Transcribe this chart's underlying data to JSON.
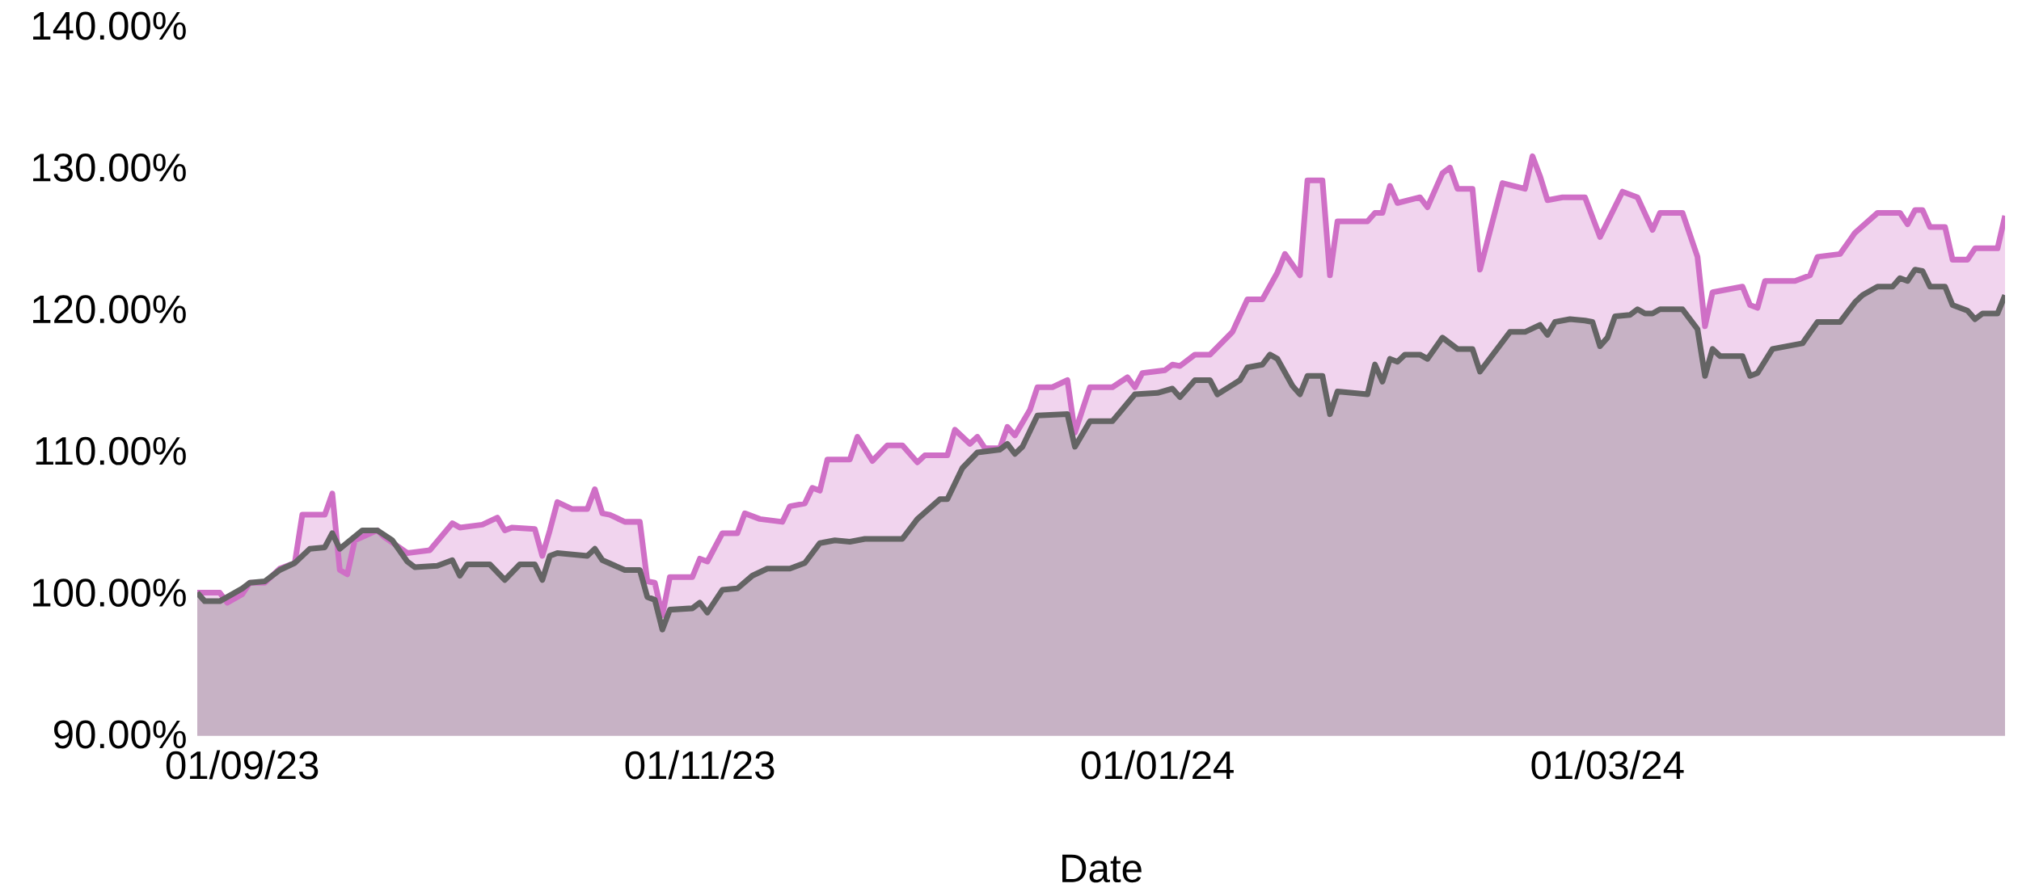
{
  "chart_data": {
    "type": "area",
    "xlabel": "Date",
    "xlim": [
      "2023-08-26",
      "2024-04-23"
    ],
    "xticks": [
      {
        "value": "2023-09-01",
        "label": "01/09/23"
      },
      {
        "value": "2023-11-01",
        "label": "01/11/23"
      },
      {
        "value": "2024-01-01",
        "label": "01/01/24"
      },
      {
        "value": "2024-03-01",
        "label": "01/03/24"
      }
    ],
    "ylim": [
      90,
      140
    ],
    "yticks": [
      {
        "value": 90,
        "label": "90.00%"
      },
      {
        "value": 100,
        "label": "100.00%"
      },
      {
        "value": 110,
        "label": "110.00%"
      },
      {
        "value": 120,
        "label": "120.00%"
      },
      {
        "value": 130,
        "label": "130.00%"
      },
      {
        "value": 140,
        "label": "140.00%"
      }
    ],
    "series": [
      {
        "color": "#cf6fc6",
        "x": [
          "2023-08-26",
          "2023-08-29",
          "2023-08-30",
          "2023-09-01",
          "2023-09-02",
          "2023-09-04",
          "2023-09-06",
          "2023-09-08",
          "2023-09-09",
          "2023-09-12",
          "2023-09-13",
          "2023-09-14",
          "2023-09-15",
          "2023-09-16",
          "2023-09-19",
          "2023-09-20",
          "2023-09-23",
          "2023-09-26",
          "2023-09-29",
          "2023-09-30",
          "2023-10-03",
          "2023-10-05",
          "2023-10-06",
          "2023-10-07",
          "2023-10-10",
          "2023-10-11",
          "2023-10-12",
          "2023-10-13",
          "2023-10-15",
          "2023-10-17",
          "2023-10-18",
          "2023-10-19",
          "2023-10-20",
          "2023-10-22",
          "2023-10-24",
          "2023-10-25",
          "2023-10-26",
          "2023-10-27",
          "2023-10-28",
          "2023-10-31",
          "2023-11-01",
          "2023-11-02",
          "2023-11-04",
          "2023-11-06",
          "2023-11-07",
          "2023-11-09",
          "2023-11-12",
          "2023-11-13",
          "2023-11-15",
          "2023-11-16",
          "2023-11-17",
          "2023-11-18",
          "2023-11-21",
          "2023-11-22",
          "2023-11-24",
          "2023-11-26",
          "2023-11-28",
          "2023-11-30",
          "2023-12-01",
          "2023-12-04",
          "2023-12-05",
          "2023-12-07",
          "2023-12-08",
          "2023-12-09",
          "2023-12-11",
          "2023-12-12",
          "2023-12-13",
          "2023-12-15",
          "2023-12-16",
          "2023-12-18",
          "2023-12-20",
          "2023-12-21",
          "2023-12-23",
          "2023-12-26",
          "2023-12-28",
          "2023-12-29",
          "2023-12-30",
          "2024-01-02",
          "2024-01-03",
          "2024-01-04",
          "2024-01-06",
          "2024-01-08",
          "2024-01-11",
          "2024-01-13",
          "2024-01-15",
          "2024-01-17",
          "2024-01-18",
          "2024-01-20",
          "2024-01-21",
          "2024-01-23",
          "2024-01-24",
          "2024-01-25",
          "2024-01-29",
          "2024-01-30",
          "2024-01-31",
          "2024-02-01",
          "2024-02-02",
          "2024-02-05",
          "2024-02-06",
          "2024-02-08",
          "2024-02-09",
          "2024-02-10",
          "2024-02-12",
          "2024-02-13",
          "2024-02-16",
          "2024-02-19",
          "2024-02-20",
          "2024-02-21",
          "2024-02-22",
          "2024-02-24",
          "2024-02-27",
          "2024-02-29",
          "2024-03-03",
          "2024-03-05",
          "2024-03-07",
          "2024-03-08",
          "2024-03-11",
          "2024-03-13",
          "2024-03-14",
          "2024-03-15",
          "2024-03-19",
          "2024-03-20",
          "2024-03-21",
          "2024-03-22",
          "2024-03-26",
          "2024-03-28",
          "2024-03-29",
          "2024-04-01",
          "2024-04-03",
          "2024-04-06",
          "2024-04-09",
          "2024-04-10",
          "2024-04-11",
          "2024-04-12",
          "2024-04-13",
          "2024-04-15",
          "2024-04-16",
          "2024-04-18",
          "2024-04-19",
          "2024-04-22",
          "2024-04-23"
        ],
        "values": [
          100.0,
          100.0,
          99.3,
          99.9,
          100.7,
          100.7,
          101.7,
          102.1,
          105.5,
          105.5,
          107.0,
          101.6,
          101.3,
          103.7,
          104.4,
          103.9,
          102.8,
          103.0,
          104.9,
          104.6,
          104.8,
          105.3,
          104.4,
          104.6,
          104.5,
          102.6,
          104.4,
          106.4,
          105.9,
          105.9,
          107.3,
          105.6,
          105.5,
          105.0,
          105.0,
          100.8,
          100.7,
          98.4,
          101.1,
          101.1,
          102.4,
          102.2,
          104.2,
          104.2,
          105.6,
          105.2,
          105.0,
          106.1,
          106.3,
          107.4,
          107.2,
          109.4,
          109.4,
          111.0,
          109.3,
          110.4,
          110.4,
          109.2,
          109.7,
          109.7,
          111.5,
          110.5,
          111.0,
          110.2,
          110.2,
          111.7,
          111.1,
          112.9,
          114.5,
          114.5,
          115.0,
          111.3,
          114.5,
          114.5,
          115.2,
          114.5,
          115.5,
          115.7,
          116.1,
          116.0,
          116.8,
          116.8,
          118.4,
          120.7,
          120.7,
          122.6,
          123.9,
          122.4,
          129.1,
          129.1,
          122.4,
          126.2,
          126.2,
          126.8,
          126.8,
          128.7,
          127.5,
          127.9,
          127.2,
          129.6,
          130.0,
          128.5,
          128.5,
          122.8,
          128.9,
          128.5,
          130.8,
          129.4,
          127.7,
          127.9,
          127.9,
          125.1,
          128.3,
          127.9,
          125.6,
          126.8,
          126.8,
          123.7,
          118.8,
          121.2,
          121.6,
          120.3,
          120.1,
          122.0,
          122.0,
          122.4,
          123.7,
          123.9,
          125.4,
          126.8,
          126.8,
          126.0,
          127.0,
          127.0,
          125.8,
          125.8,
          123.5,
          123.5,
          124.3,
          124.3,
          126.6
        ]
      },
      {
        "color": "#646464",
        "x": [
          "2023-08-26",
          "2023-08-27",
          "2023-08-29",
          "2023-08-31",
          "2023-09-01",
          "2023-09-02",
          "2023-09-04",
          "2023-09-06",
          "2023-09-08",
          "2023-09-10",
          "2023-09-12",
          "2023-09-13",
          "2023-09-14",
          "2023-09-17",
          "2023-09-19",
          "2023-09-21",
          "2023-09-23",
          "2023-09-24",
          "2023-09-27",
          "2023-09-29",
          "2023-09-30",
          "2023-10-01",
          "2023-10-04",
          "2023-10-06",
          "2023-10-08",
          "2023-10-10",
          "2023-10-11",
          "2023-10-12",
          "2023-10-13",
          "2023-10-17",
          "2023-10-18",
          "2023-10-19",
          "2023-10-22",
          "2023-10-24",
          "2023-10-25",
          "2023-10-26",
          "2023-10-27",
          "2023-10-28",
          "2023-10-31",
          "2023-11-01",
          "2023-11-02",
          "2023-11-04",
          "2023-11-06",
          "2023-11-08",
          "2023-11-10",
          "2023-11-13",
          "2023-11-15",
          "2023-11-17",
          "2023-11-19",
          "2023-11-21",
          "2023-11-23",
          "2023-11-28",
          "2023-11-30",
          "2023-12-03",
          "2023-12-04",
          "2023-12-06",
          "2023-12-08",
          "2023-12-11",
          "2023-12-12",
          "2023-12-13",
          "2023-12-14",
          "2023-12-16",
          "2023-12-20",
          "2023-12-21",
          "2023-12-23",
          "2023-12-26",
          "2023-12-29",
          "2024-01-01",
          "2024-01-03",
          "2024-01-04",
          "2024-01-06",
          "2024-01-08",
          "2024-01-09",
          "2024-01-12",
          "2024-01-13",
          "2024-01-15",
          "2024-01-16",
          "2024-01-17",
          "2024-01-19",
          "2024-01-20",
          "2024-01-21",
          "2024-01-23",
          "2024-01-24",
          "2024-01-25",
          "2024-01-29",
          "2024-01-30",
          "2024-01-31",
          "2024-02-01",
          "2024-02-02",
          "2024-02-03",
          "2024-02-05",
          "2024-02-06",
          "2024-02-08",
          "2024-02-10",
          "2024-02-12",
          "2024-02-13",
          "2024-02-17",
          "2024-02-19",
          "2024-02-21",
          "2024-02-22",
          "2024-02-23",
          "2024-02-25",
          "2024-02-27",
          "2024-02-28",
          "2024-02-29",
          "2024-03-01",
          "2024-03-02",
          "2024-03-04",
          "2024-03-05",
          "2024-03-06",
          "2024-03-07",
          "2024-03-08",
          "2024-03-11",
          "2024-03-13",
          "2024-03-14",
          "2024-03-15",
          "2024-03-16",
          "2024-03-19",
          "2024-03-20",
          "2024-03-21",
          "2024-03-23",
          "2024-03-27",
          "2024-03-29",
          "2024-04-01",
          "2024-04-03",
          "2024-04-04",
          "2024-04-06",
          "2024-04-08",
          "2024-04-09",
          "2024-04-10",
          "2024-04-11",
          "2024-04-12",
          "2024-04-13",
          "2024-04-15",
          "2024-04-16",
          "2024-04-18",
          "2024-04-19",
          "2024-04-20",
          "2024-04-22",
          "2024-04-23"
        ],
        "values": [
          100.0,
          99.4,
          99.4,
          100.0,
          100.3,
          100.7,
          100.8,
          101.6,
          102.1,
          103.1,
          103.2,
          104.2,
          103.1,
          104.4,
          104.4,
          103.7,
          102.2,
          101.8,
          101.9,
          102.3,
          101.2,
          102.0,
          102.0,
          100.9,
          102.0,
          102.0,
          100.9,
          102.6,
          102.8,
          102.6,
          103.1,
          102.3,
          101.6,
          101.6,
          99.7,
          99.5,
          97.4,
          98.8,
          98.9,
          99.3,
          98.6,
          100.2,
          100.3,
          101.2,
          101.7,
          101.7,
          102.1,
          103.5,
          103.7,
          103.6,
          103.8,
          103.8,
          105.2,
          106.6,
          106.6,
          108.8,
          109.9,
          110.1,
          110.5,
          109.8,
          110.3,
          112.5,
          112.6,
          110.3,
          112.1,
          112.1,
          114.0,
          114.1,
          114.4,
          113.8,
          115.0,
          115.0,
          114.0,
          115.0,
          115.9,
          116.1,
          116.8,
          116.5,
          114.6,
          114.0,
          115.3,
          115.3,
          112.6,
          114.2,
          114.0,
          116.1,
          114.9,
          116.5,
          116.3,
          116.8,
          116.8,
          116.5,
          118.0,
          117.2,
          117.2,
          115.6,
          118.4,
          118.4,
          118.9,
          118.2,
          119.1,
          119.3,
          119.2,
          119.1,
          117.4,
          118.0,
          119.5,
          119.6,
          120.0,
          119.7,
          119.7,
          120.0,
          120.0,
          118.6,
          115.3,
          117.2,
          116.7,
          116.7,
          115.3,
          115.5,
          117.2,
          117.6,
          119.1,
          119.1,
          120.5,
          121.0,
          121.6,
          121.6,
          122.2,
          122.0,
          122.8,
          122.7,
          121.6,
          121.6,
          120.3,
          119.9,
          119.3,
          119.7,
          119.7,
          121.0
        ]
      }
    ]
  }
}
